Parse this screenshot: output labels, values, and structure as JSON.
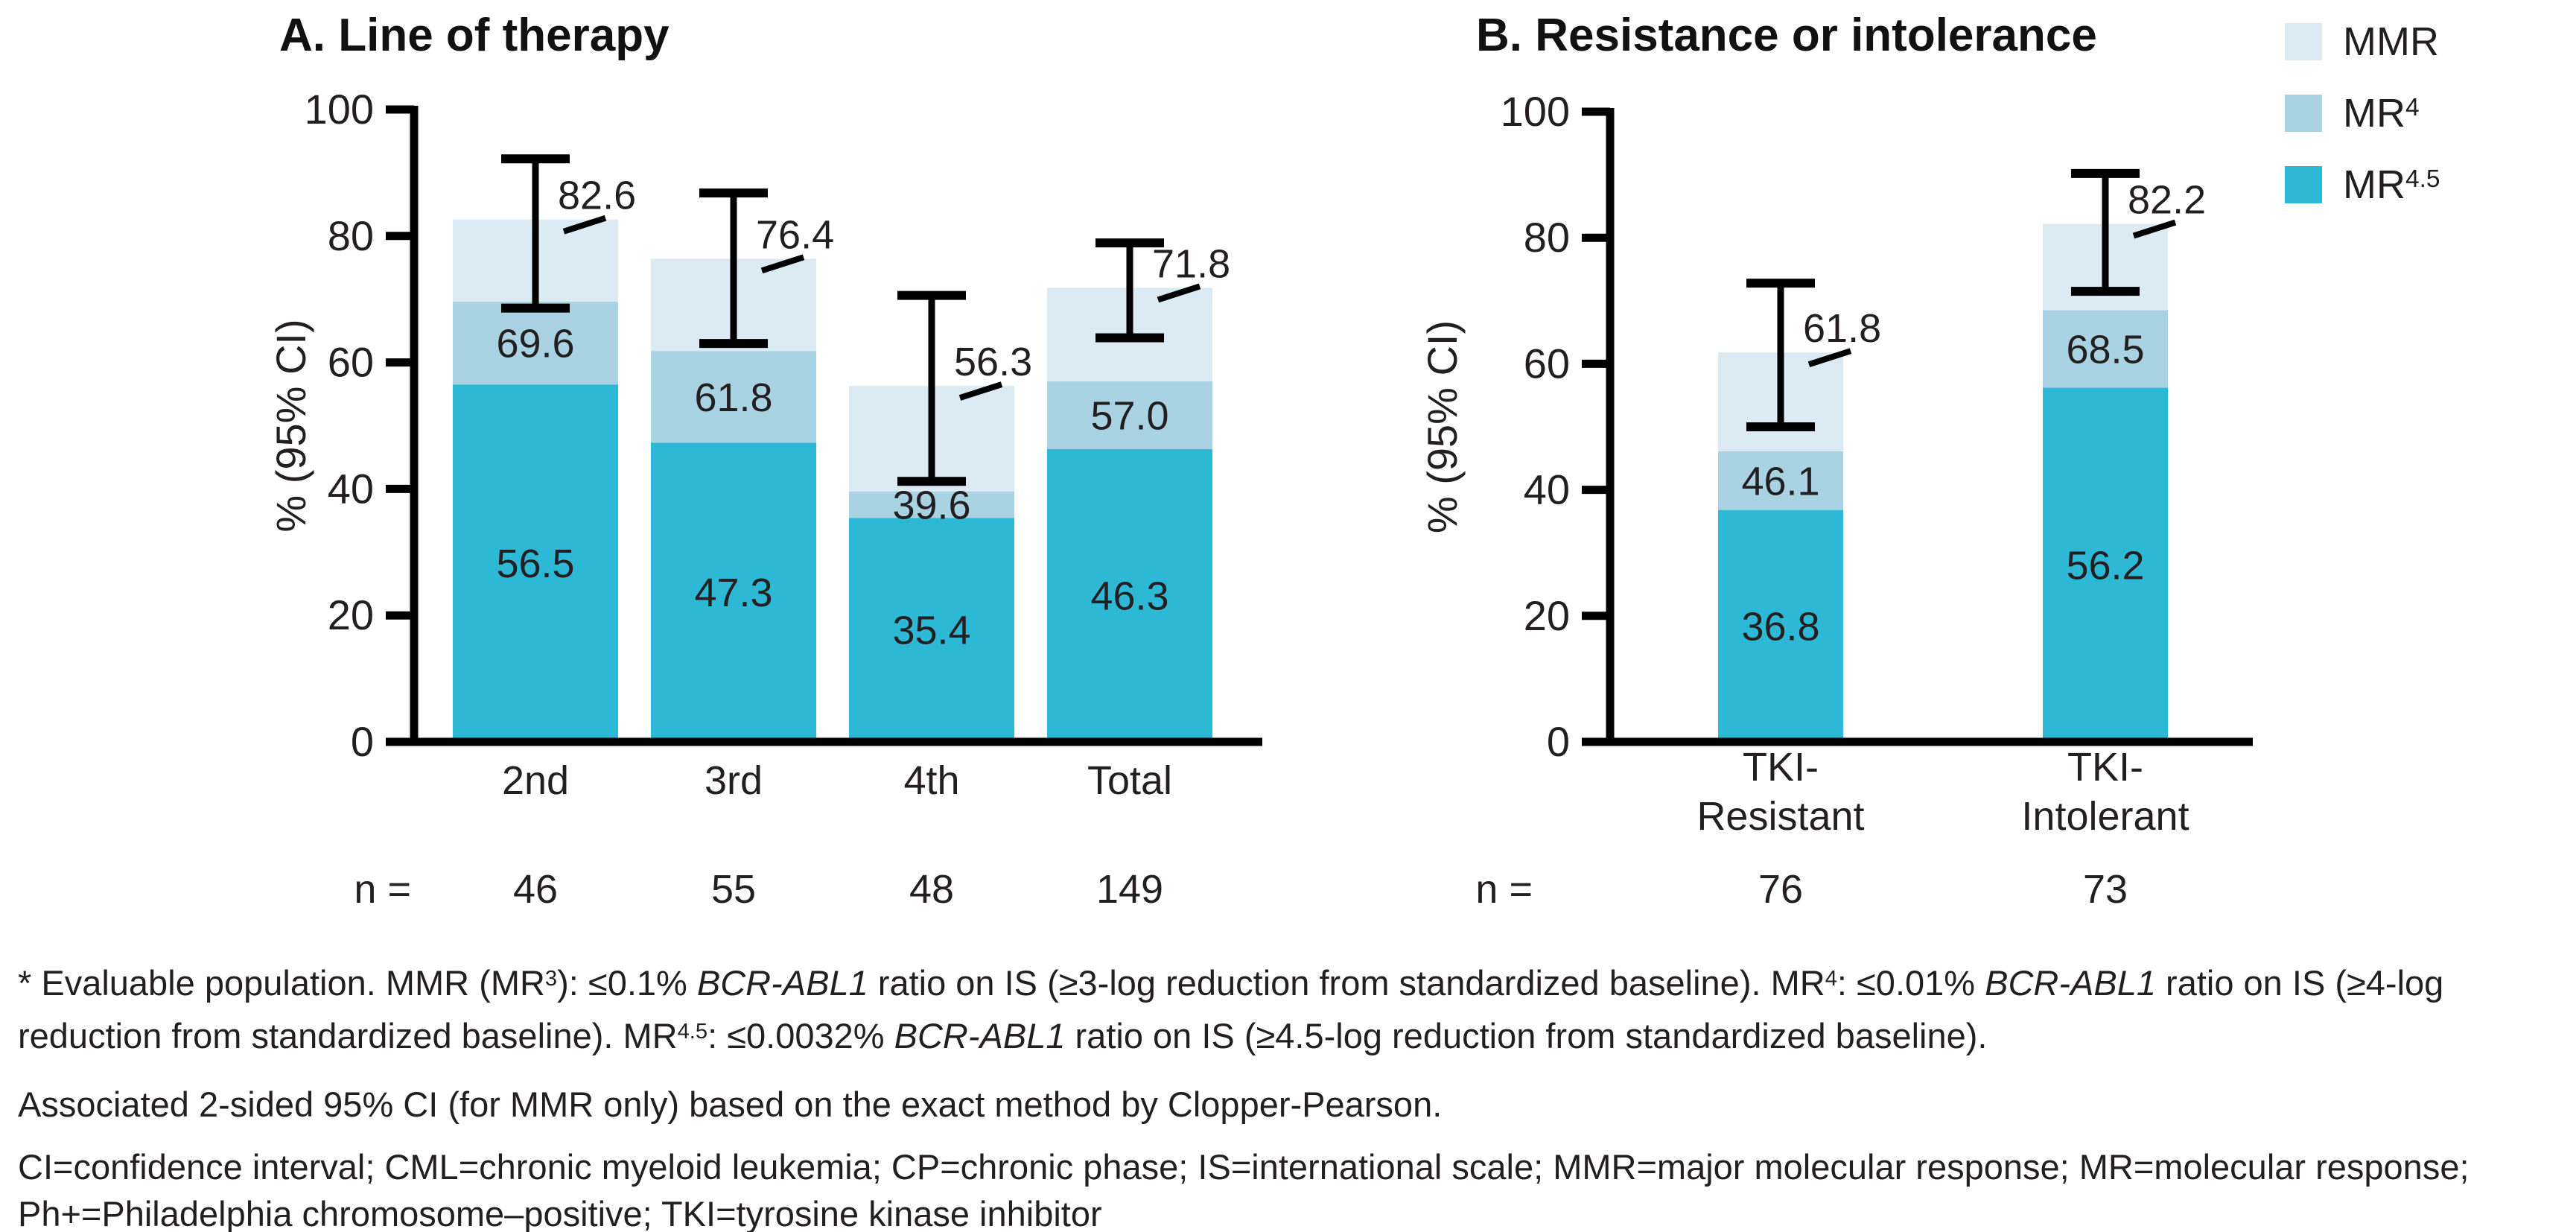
{
  "colors": {
    "mmr": "#dcebf3",
    "mr4": "#a9d2e2",
    "mr45": "#2db8d6",
    "axis": "#000000",
    "text": "#231f20"
  },
  "legend": {
    "items": [
      {
        "key": "mmr",
        "segments": [
          {
            "t": "MMR"
          }
        ]
      },
      {
        "key": "mr4",
        "segments": [
          {
            "t": "MR"
          },
          {
            "t": "4",
            "sup": true
          }
        ]
      },
      {
        "key": "mr45",
        "segments": [
          {
            "t": "MR"
          },
          {
            "t": "4.5",
            "sup": true
          }
        ]
      }
    ]
  },
  "chart_data": [
    {
      "id": "A",
      "type": "bar",
      "stacked": true,
      "title": "A. Line of therapy",
      "ylabel": "% (95% CI)",
      "ylim": [
        0,
        100
      ],
      "yticks": [
        0,
        20,
        40,
        60,
        80,
        100
      ],
      "grid": false,
      "categories": [
        [
          "2nd"
        ],
        [
          "3rd"
        ],
        [
          "4th"
        ],
        [
          "Total"
        ]
      ],
      "n_label": "n =",
      "n_values": [
        "46",
        "55",
        "48",
        "149"
      ],
      "series": [
        {
          "name": "MMR",
          "key": "mmr",
          "values": [
            82.6,
            76.4,
            56.3,
            71.8
          ]
        },
        {
          "name": "MR4",
          "key": "mr4",
          "values": [
            69.6,
            61.8,
            39.6,
            57.0
          ]
        },
        {
          "name": "MR4.5",
          "key": "mr45",
          "values": [
            56.5,
            47.3,
            35.4,
            46.3
          ]
        }
      ],
      "error_bars": {
        "on": "MMR",
        "low": [
          68.6,
          63.0,
          41.2,
          63.9
        ],
        "high": [
          92.2,
          86.8,
          70.6,
          78.9
        ]
      }
    },
    {
      "id": "B",
      "type": "bar",
      "stacked": true,
      "title": "B. Resistance or intolerance",
      "ylabel": "% (95% CI)",
      "ylim": [
        0,
        100
      ],
      "yticks": [
        0,
        20,
        40,
        60,
        80,
        100
      ],
      "grid": false,
      "categories": [
        [
          "TKI-",
          "Resistant"
        ],
        [
          "TKI-",
          "Intolerant"
        ]
      ],
      "n_label": "n =",
      "n_values": [
        "76",
        "73"
      ],
      "series": [
        {
          "name": "MMR",
          "key": "mmr",
          "values": [
            61.8,
            82.2
          ]
        },
        {
          "name": "MR4",
          "key": "mr4",
          "values": [
            46.1,
            68.5
          ]
        },
        {
          "name": "MR4.5",
          "key": "mr45",
          "values": [
            36.8,
            56.2
          ]
        }
      ],
      "error_bars": {
        "on": "MMR",
        "low": [
          50.0,
          71.5
        ],
        "high": [
          72.8,
          90.2
        ]
      }
    }
  ],
  "footnotes": [
    [
      {
        "t": "* Evaluable population. MMR (MR"
      },
      {
        "t": "3",
        "sup": true
      },
      {
        "t": "): ≤0.1% "
      },
      {
        "t": "BCR-ABL1",
        "italic": true
      },
      {
        "t": " ratio on IS (≥3-log reduction from standardized baseline). MR"
      },
      {
        "t": "4",
        "sup": true
      },
      {
        "t": ": ≤0.01% "
      },
      {
        "t": "BCR-ABL1",
        "italic": true
      },
      {
        "t": " ratio on IS (≥4-log reduction from standardized baseline). MR"
      },
      {
        "t": "4.5",
        "sup": true
      },
      {
        "t": ": ≤0.0032% "
      },
      {
        "t": "BCR-ABL1",
        "italic": true
      },
      {
        "t": " ratio on IS (≥4.5-log reduction from standardized baseline)."
      }
    ],
    [
      {
        "t": "Associated 2-sided 95% CI (for MMR only) based on the exact method by Clopper-Pearson."
      }
    ],
    [
      {
        "t": "CI=confidence interval; CML=chronic myeloid leukemia; CP=chronic phase; IS=international scale; MMR=major molecular response; MR=molecular response; Ph+=Philadelphia chromosome–positive; TKI=tyrosine kinase inhibitor"
      }
    ]
  ]
}
